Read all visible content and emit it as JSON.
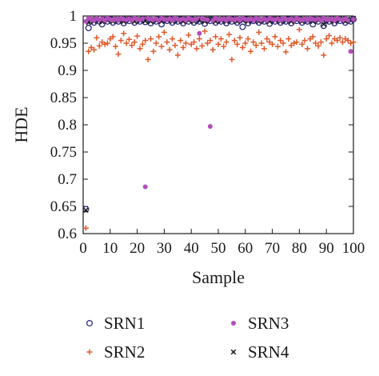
{
  "chart_data": {
    "type": "scatter",
    "xlabel": "Sample",
    "ylabel": "HDE",
    "xlim": [
      0,
      100
    ],
    "ylim": [
      0.6,
      1.0
    ],
    "x_ticks": [
      0,
      10,
      20,
      30,
      40,
      50,
      60,
      70,
      80,
      90,
      100
    ],
    "x_tick_labels": [
      "0",
      "10",
      "20",
      "30",
      "40",
      "50",
      "60",
      "70",
      "80",
      "90",
      "100"
    ],
    "y_ticks": [
      0.6,
      0.65,
      0.7,
      0.75,
      0.8,
      0.85,
      0.9,
      0.95,
      1.0
    ],
    "y_tick_labels": [
      "0.6",
      "0.65",
      "0.7",
      "0.75",
      "0.8",
      "0.85",
      "0.9",
      "0.95",
      "1"
    ],
    "grid": false,
    "legend_position": "below",
    "series": [
      {
        "name": "SRN1",
        "marker": "open-circle",
        "color": "#2b2a7a",
        "x": [
          1,
          2,
          3,
          4,
          5,
          6,
          7,
          8,
          9,
          10,
          11,
          12,
          13,
          14,
          15,
          16,
          17,
          18,
          19,
          20,
          21,
          22,
          23,
          24,
          25,
          26,
          27,
          28,
          29,
          30,
          31,
          32,
          33,
          34,
          35,
          36,
          37,
          38,
          39,
          40,
          41,
          42,
          43,
          44,
          45,
          46,
          47,
          48,
          49,
          50,
          51,
          52,
          53,
          54,
          55,
          56,
          57,
          58,
          59,
          60,
          61,
          62,
          63,
          64,
          65,
          66,
          67,
          68,
          69,
          70,
          71,
          72,
          73,
          74,
          75,
          76,
          77,
          78,
          79,
          80,
          81,
          82,
          83,
          84,
          85,
          86,
          87,
          88,
          89,
          90,
          91,
          92,
          93,
          94,
          95,
          96,
          97,
          98,
          99,
          100
        ],
        "y": [
          0.645,
          0.978,
          0.992,
          0.988,
          0.994,
          0.99,
          0.985,
          0.993,
          0.99,
          0.995,
          0.988,
          0.992,
          0.99,
          0.994,
          0.987,
          0.993,
          0.991,
          0.995,
          0.988,
          0.992,
          0.99,
          0.994,
          0.989,
          0.993,
          0.987,
          0.992,
          0.99,
          0.994,
          0.985,
          0.993,
          0.991,
          0.995,
          0.988,
          0.992,
          0.99,
          0.994,
          0.987,
          0.993,
          0.99,
          0.995,
          0.988,
          0.992,
          0.99,
          0.994,
          0.986,
          0.993,
          0.991,
          0.995,
          0.988,
          0.992,
          0.99,
          0.994,
          0.987,
          0.993,
          0.99,
          0.995,
          0.988,
          0.992,
          0.98,
          0.994,
          0.987,
          0.993,
          0.991,
          0.995,
          0.988,
          0.992,
          0.99,
          0.994,
          0.986,
          0.993,
          0.99,
          0.995,
          0.988,
          0.992,
          0.99,
          0.994,
          0.987,
          0.993,
          0.991,
          0.995,
          0.988,
          0.992,
          0.99,
          0.994,
          0.985,
          0.993,
          0.99,
          0.995,
          0.982,
          0.992,
          0.99,
          0.994,
          0.987,
          0.993,
          0.991,
          0.995,
          0.988,
          0.992,
          0.99,
          0.994
        ]
      },
      {
        "name": "SRN2",
        "marker": "plus",
        "color": "#e0592a",
        "x": [
          1,
          2,
          3,
          4,
          5,
          6,
          7,
          8,
          9,
          10,
          11,
          12,
          13,
          14,
          15,
          16,
          17,
          18,
          19,
          20,
          21,
          22,
          23,
          24,
          25,
          26,
          27,
          28,
          29,
          30,
          31,
          32,
          33,
          34,
          35,
          36,
          37,
          38,
          39,
          40,
          41,
          42,
          43,
          44,
          45,
          46,
          47,
          48,
          49,
          50,
          51,
          52,
          53,
          54,
          55,
          56,
          57,
          58,
          59,
          60,
          61,
          62,
          63,
          64,
          65,
          66,
          67,
          68,
          69,
          70,
          71,
          72,
          73,
          74,
          75,
          76,
          77,
          78,
          79,
          80,
          81,
          82,
          83,
          84,
          85,
          86,
          87,
          88,
          89,
          90,
          91,
          92,
          93,
          94,
          95,
          96,
          97,
          98,
          99,
          100
        ],
        "y": [
          0.61,
          0.935,
          0.942,
          0.938,
          0.96,
          0.945,
          0.952,
          0.948,
          0.95,
          0.958,
          0.962,
          0.944,
          0.93,
          0.955,
          0.968,
          0.95,
          0.957,
          0.946,
          0.952,
          0.963,
          0.94,
          0.948,
          0.955,
          0.92,
          0.958,
          0.935,
          0.95,
          0.962,
          0.944,
          0.97,
          0.952,
          0.938,
          0.958,
          0.946,
          0.928,
          0.955,
          0.942,
          0.95,
          0.965,
          0.948,
          0.952,
          0.94,
          0.958,
          0.945,
          0.972,
          0.95,
          0.955,
          0.938,
          0.962,
          0.948,
          0.958,
          0.944,
          0.952,
          0.966,
          0.92,
          0.955,
          0.948,
          0.96,
          0.942,
          0.95,
          0.958,
          0.935,
          0.952,
          0.946,
          0.97,
          0.95,
          0.94,
          0.958,
          0.952,
          0.948,
          0.962,
          0.944,
          0.955,
          0.95,
          0.934,
          0.958,
          0.946,
          0.95,
          0.952,
          0.975,
          0.948,
          0.955,
          0.94,
          0.958,
          0.962,
          0.95,
          0.945,
          0.952,
          0.928,
          0.958,
          0.964,
          0.95,
          0.958,
          0.955,
          0.96,
          0.952,
          0.958,
          0.955,
          0.95,
          0.952
        ]
      },
      {
        "name": "SRN3",
        "marker": "filled-dot",
        "color": "#b24fb8",
        "x": [
          1,
          2,
          3,
          4,
          5,
          6,
          7,
          8,
          9,
          10,
          11,
          12,
          13,
          14,
          15,
          16,
          17,
          18,
          19,
          20,
          21,
          22,
          23,
          24,
          25,
          26,
          27,
          28,
          29,
          30,
          31,
          32,
          33,
          34,
          35,
          36,
          37,
          38,
          39,
          40,
          41,
          42,
          43,
          44,
          45,
          46,
          47,
          48,
          49,
          50,
          51,
          52,
          53,
          54,
          55,
          56,
          57,
          58,
          59,
          60,
          61,
          62,
          63,
          64,
          65,
          66,
          67,
          68,
          69,
          70,
          71,
          72,
          73,
          74,
          75,
          76,
          77,
          78,
          79,
          80,
          81,
          82,
          83,
          84,
          85,
          86,
          87,
          88,
          89,
          90,
          91,
          92,
          93,
          94,
          95,
          96,
          97,
          98,
          99,
          100
        ],
        "y": [
          0.99,
          0.996,
          0.994,
          0.992,
          0.996,
          0.993,
          0.995,
          0.992,
          0.996,
          0.994,
          0.993,
          0.995,
          0.992,
          0.996,
          0.994,
          0.993,
          0.995,
          0.992,
          0.996,
          0.994,
          0.993,
          0.995,
          0.686,
          0.996,
          0.994,
          0.993,
          0.995,
          0.992,
          0.996,
          0.994,
          0.993,
          0.995,
          0.992,
          0.996,
          0.994,
          0.993,
          0.995,
          0.992,
          0.996,
          0.994,
          0.993,
          0.995,
          0.968,
          0.996,
          0.994,
          0.993,
          0.797,
          0.992,
          0.996,
          0.994,
          0.993,
          0.995,
          0.992,
          0.996,
          0.994,
          0.993,
          0.995,
          0.992,
          0.996,
          0.994,
          0.993,
          0.995,
          0.992,
          0.996,
          0.994,
          0.993,
          0.995,
          0.992,
          0.996,
          0.994,
          0.993,
          0.995,
          0.992,
          0.996,
          0.994,
          0.993,
          0.995,
          0.992,
          0.996,
          0.994,
          0.993,
          0.995,
          0.992,
          0.996,
          0.994,
          0.993,
          0.995,
          0.992,
          0.996,
          0.994,
          0.993,
          0.995,
          0.992,
          0.996,
          0.994,
          0.993,
          0.995,
          0.992,
          0.935,
          0.994
        ]
      },
      {
        "name": "SRN4",
        "marker": "x",
        "color": "#1a1a1a",
        "x": [
          1,
          2,
          3,
          4,
          5,
          6,
          7,
          8,
          9,
          10,
          11,
          12,
          13,
          14,
          15,
          16,
          17,
          18,
          19,
          20,
          21,
          22,
          23,
          24,
          25,
          26,
          27,
          28,
          29,
          30,
          31,
          32,
          33,
          34,
          35,
          36,
          37,
          38,
          39,
          40,
          41,
          42,
          43,
          44,
          45,
          46,
          47,
          48,
          49,
          50,
          51,
          52,
          53,
          54,
          55,
          56,
          57,
          58,
          59,
          60,
          61,
          62,
          63,
          64,
          65,
          66,
          67,
          68,
          69,
          70,
          71,
          72,
          73,
          74,
          75,
          76,
          77,
          78,
          79,
          80,
          81,
          82,
          83,
          84,
          85,
          86,
          87,
          88,
          89,
          90,
          91,
          92,
          93,
          94,
          95,
          96,
          97,
          98,
          99,
          100
        ],
        "y": [
          0.643,
          0.988,
          0.994,
          0.99,
          0.996,
          0.992,
          0.99,
          0.995,
          0.992,
          0.996,
          0.99,
          0.994,
          0.992,
          0.996,
          0.99,
          0.995,
          0.993,
          0.996,
          0.99,
          0.994,
          0.992,
          0.996,
          0.991,
          0.995,
          0.99,
          0.994,
          0.992,
          0.996,
          0.99,
          0.995,
          0.993,
          0.996,
          0.99,
          0.994,
          0.992,
          0.996,
          0.99,
          0.995,
          0.992,
          0.996,
          0.99,
          0.994,
          0.992,
          0.996,
          0.99,
          0.995,
          0.993,
          0.996,
          0.99,
          0.994,
          0.992,
          0.996,
          0.99,
          0.995,
          0.992,
          0.996,
          0.99,
          0.994,
          0.992,
          0.996,
          0.99,
          0.995,
          0.993,
          0.996,
          0.99,
          0.994,
          0.992,
          0.996,
          0.99,
          0.995,
          0.992,
          0.996,
          0.99,
          0.994,
          0.992,
          0.996,
          0.99,
          0.995,
          0.993,
          0.996,
          0.99,
          0.994,
          0.992,
          0.996,
          0.99,
          0.995,
          0.992,
          0.996,
          0.985,
          0.994,
          0.992,
          0.996,
          0.99,
          0.995,
          0.993,
          0.996,
          0.99,
          0.994,
          0.992,
          0.996
        ]
      }
    ]
  }
}
